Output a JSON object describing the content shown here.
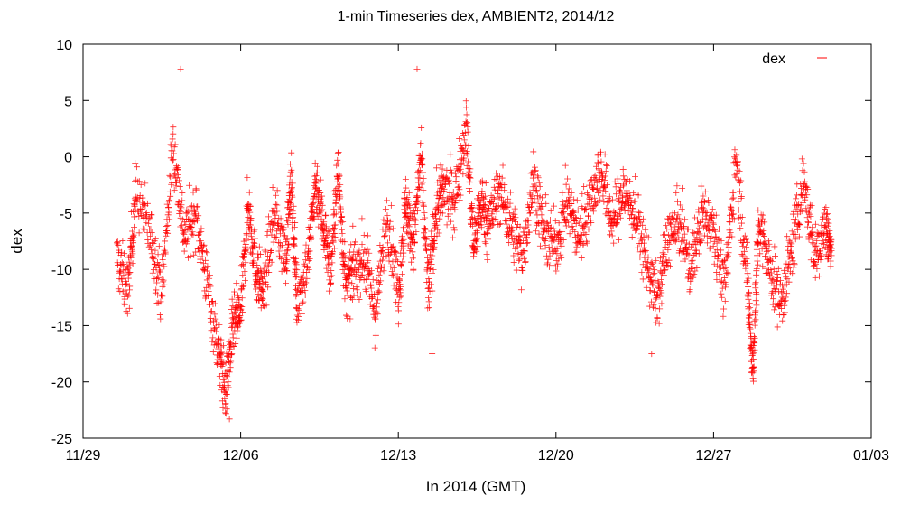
{
  "chart_data": {
    "type": "scatter",
    "title": "1-min Timeseries dex, AMBIENT2, 2014/12",
    "xlabel": "In 2014 (GMT)",
    "ylabel": "dex",
    "xlim": [
      "2014-11-29",
      "2015-01-03"
    ],
    "ylim": [
      -25,
      10
    ],
    "x_ticks": [
      {
        "date": "2014-11-29",
        "label": "11/29"
      },
      {
        "date": "2014-12-06",
        "label": "12/06"
      },
      {
        "date": "2014-12-13",
        "label": "12/13"
      },
      {
        "date": "2014-12-20",
        "label": "12/20"
      },
      {
        "date": "2014-12-27",
        "label": "12/27"
      },
      {
        "date": "2015-01-03",
        "label": "01/03"
      }
    ],
    "y_ticks": [
      10,
      5,
      0,
      -5,
      -10,
      -15,
      -20,
      -25
    ],
    "grid": false,
    "legend_position": "top-right",
    "marker": "+",
    "color": "#ff0000",
    "series": [
      {
        "name": "dex",
        "trend": [
          {
            "x": "2014-11-30 12:00",
            "y": -9
          },
          {
            "x": "2014-12-01 00:00",
            "y": -12
          },
          {
            "x": "2014-12-01 08:00",
            "y": -3
          },
          {
            "x": "2014-12-02 00:00",
            "y": -7
          },
          {
            "x": "2014-12-02 12:00",
            "y": -12
          },
          {
            "x": "2014-12-03 00:00",
            "y": 1
          },
          {
            "x": "2014-12-03 12:00",
            "y": -7
          },
          {
            "x": "2014-12-04 00:00",
            "y": -5
          },
          {
            "x": "2014-12-04 12:00",
            "y": -11
          },
          {
            "x": "2014-12-05 00:00",
            "y": -17
          },
          {
            "x": "2014-12-05 08:00",
            "y": -21
          },
          {
            "x": "2014-12-05 16:00",
            "y": -15
          },
          {
            "x": "2014-12-06 00:00",
            "y": -14
          },
          {
            "x": "2014-12-06 08:00",
            "y": -4
          },
          {
            "x": "2014-12-06 16:00",
            "y": -10
          },
          {
            "x": "2014-12-07 00:00",
            "y": -12
          },
          {
            "x": "2014-12-07 12:00",
            "y": -5
          },
          {
            "x": "2014-12-08 00:00",
            "y": -9
          },
          {
            "x": "2014-12-08 06:00",
            "y": -2
          },
          {
            "x": "2014-12-08 12:00",
            "y": -13
          },
          {
            "x": "2014-12-09 00:00",
            "y": -9
          },
          {
            "x": "2014-12-09 08:00",
            "y": -2
          },
          {
            "x": "2014-12-09 16:00",
            "y": -6
          },
          {
            "x": "2014-12-10 00:00",
            "y": -10
          },
          {
            "x": "2014-12-10 08:00",
            "y": -1
          },
          {
            "x": "2014-12-10 16:00",
            "y": -12
          },
          {
            "x": "2014-12-11 00:00",
            "y": -10
          },
          {
            "x": "2014-12-11 12:00",
            "y": -9
          },
          {
            "x": "2014-12-12 00:00",
            "y": -14
          },
          {
            "x": "2014-12-12 12:00",
            "y": -5
          },
          {
            "x": "2014-12-13 00:00",
            "y": -12
          },
          {
            "x": "2014-12-13 08:00",
            "y": -4
          },
          {
            "x": "2014-12-13 16:00",
            "y": -8
          },
          {
            "x": "2014-12-14 00:00",
            "y": 0
          },
          {
            "x": "2014-12-14 08:00",
            "y": -12
          },
          {
            "x": "2014-12-14 16:00",
            "y": -5
          },
          {
            "x": "2014-12-15 00:00",
            "y": -3
          },
          {
            "x": "2014-12-15 12:00",
            "y": -4
          },
          {
            "x": "2014-12-16 00:00",
            "y": 3
          },
          {
            "x": "2014-12-16 08:00",
            "y": -8
          },
          {
            "x": "2014-12-16 16:00",
            "y": -4
          },
          {
            "x": "2014-12-17 00:00",
            "y": -6
          },
          {
            "x": "2014-12-17 12:00",
            "y": -3
          },
          {
            "x": "2014-12-18 00:00",
            "y": -6
          },
          {
            "x": "2014-12-18 12:00",
            "y": -9
          },
          {
            "x": "2014-12-19 00:00",
            "y": -2
          },
          {
            "x": "2014-12-19 12:00",
            "y": -7
          },
          {
            "x": "2014-12-20 00:00",
            "y": -8
          },
          {
            "x": "2014-12-20 12:00",
            "y": -4
          },
          {
            "x": "2014-12-21 00:00",
            "y": -7
          },
          {
            "x": "2014-12-21 12:00",
            "y": -4
          },
          {
            "x": "2014-12-22 00:00",
            "y": -1
          },
          {
            "x": "2014-12-22 12:00",
            "y": -6
          },
          {
            "x": "2014-12-23 00:00",
            "y": -3
          },
          {
            "x": "2014-12-23 12:00",
            "y": -5
          },
          {
            "x": "2014-12-24 00:00",
            "y": -9
          },
          {
            "x": "2014-12-24 12:00",
            "y": -13
          },
          {
            "x": "2014-12-25 00:00",
            "y": -7
          },
          {
            "x": "2014-12-25 12:00",
            "y": -6
          },
          {
            "x": "2014-12-26 00:00",
            "y": -10
          },
          {
            "x": "2014-12-26 12:00",
            "y": -5
          },
          {
            "x": "2014-12-27 00:00",
            "y": -6
          },
          {
            "x": "2014-12-27 12:00",
            "y": -12
          },
          {
            "x": "2014-12-28 00:00",
            "y": 0
          },
          {
            "x": "2014-12-28 12:00",
            "y": -11
          },
          {
            "x": "2014-12-28 18:00",
            "y": -19
          },
          {
            "x": "2014-12-29 00:00",
            "y": -6
          },
          {
            "x": "2014-12-29 12:00",
            "y": -10
          },
          {
            "x": "2014-12-30 00:00",
            "y": -13
          },
          {
            "x": "2014-12-30 12:00",
            "y": -8
          },
          {
            "x": "2014-12-31 00:00",
            "y": -2
          },
          {
            "x": "2014-12-31 12:00",
            "y": -9
          },
          {
            "x": "2015-01-01 00:00",
            "y": -6
          },
          {
            "x": "2015-01-01 06:00",
            "y": -9
          }
        ],
        "spread": 2.5,
        "outliers": [
          {
            "x": "2014-12-03 08:00",
            "y": 7.8
          },
          {
            "x": "2014-12-13 20:00",
            "y": 7.8
          },
          {
            "x": "2014-12-14 12:00",
            "y": -17.5
          },
          {
            "x": "2014-12-24 06:00",
            "y": -17.5
          },
          {
            "x": "2014-12-05 12:00",
            "y": -23.3
          }
        ]
      }
    ]
  }
}
